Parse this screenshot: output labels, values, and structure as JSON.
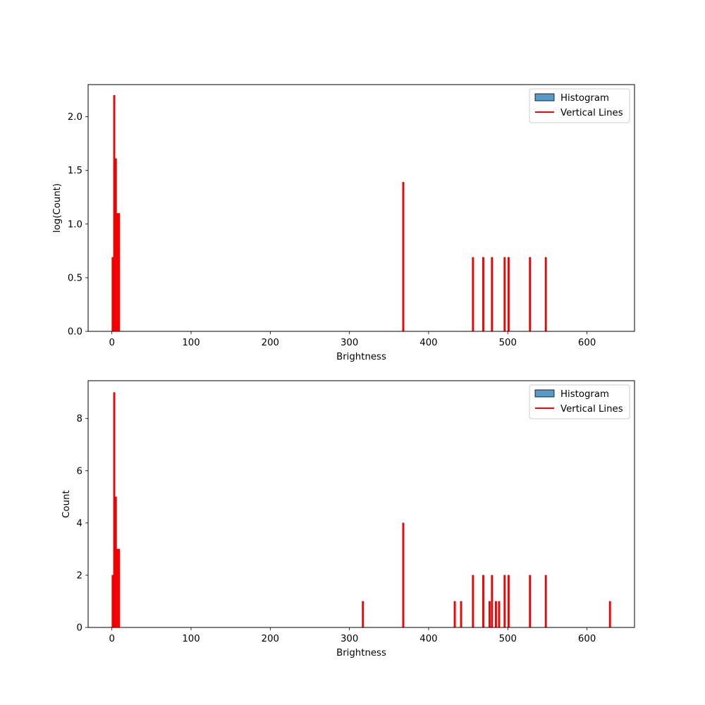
{
  "chart_data": [
    {
      "type": "bar",
      "xlabel": "Brightness",
      "ylabel": "log(Count)",
      "xlim": [
        -30,
        660
      ],
      "ylim": [
        0,
        2.3
      ],
      "xticks": [
        0,
        100,
        200,
        300,
        400,
        500,
        600
      ],
      "yticks": [
        0.0,
        0.5,
        1.0,
        1.5,
        2.0
      ],
      "ytick_labels": [
        "0.0",
        "0.5",
        "1.0",
        "1.5",
        "2.0"
      ],
      "legend": {
        "placement": "top-right",
        "entries": [
          "Histogram",
          "Vertical Lines"
        ]
      },
      "histogram_color": "#1f77b4",
      "line_color": "#ff0000",
      "series": [
        {
          "name": "Vertical Lines",
          "x": [
            1,
            3,
            5,
            7,
            9,
            368,
            456,
            469,
            480,
            496,
            501,
            528,
            548
          ],
          "values": [
            0.69,
            2.2,
            1.61,
            1.1,
            1.1,
            1.39,
            0.69,
            0.69,
            0.69,
            0.69,
            0.69,
            0.69,
            0.69
          ]
        }
      ]
    },
    {
      "type": "bar",
      "xlabel": "Brightness",
      "ylabel": "Count",
      "xlim": [
        -30,
        660
      ],
      "ylim": [
        0,
        9.45
      ],
      "xticks": [
        0,
        100,
        200,
        300,
        400,
        500,
        600
      ],
      "yticks": [
        0,
        2,
        4,
        6,
        8
      ],
      "ytick_labels": [
        "0",
        "2",
        "4",
        "6",
        "8"
      ],
      "legend": {
        "placement": "top-right",
        "entries": [
          "Histogram",
          "Vertical Lines"
        ]
      },
      "histogram_color": "#1f77b4",
      "line_color": "#ff0000",
      "series": [
        {
          "name": "Vertical Lines",
          "x": [
            1,
            3,
            5,
            7,
            9,
            317,
            368,
            433,
            441,
            456,
            469,
            477,
            480,
            485,
            489,
            496,
            501,
            528,
            548,
            629
          ],
          "values": [
            2,
            9,
            5,
            3,
            3,
            1,
            4,
            1,
            1,
            2,
            2,
            1,
            2,
            1,
            1,
            2,
            2,
            2,
            2,
            1
          ]
        }
      ]
    }
  ]
}
